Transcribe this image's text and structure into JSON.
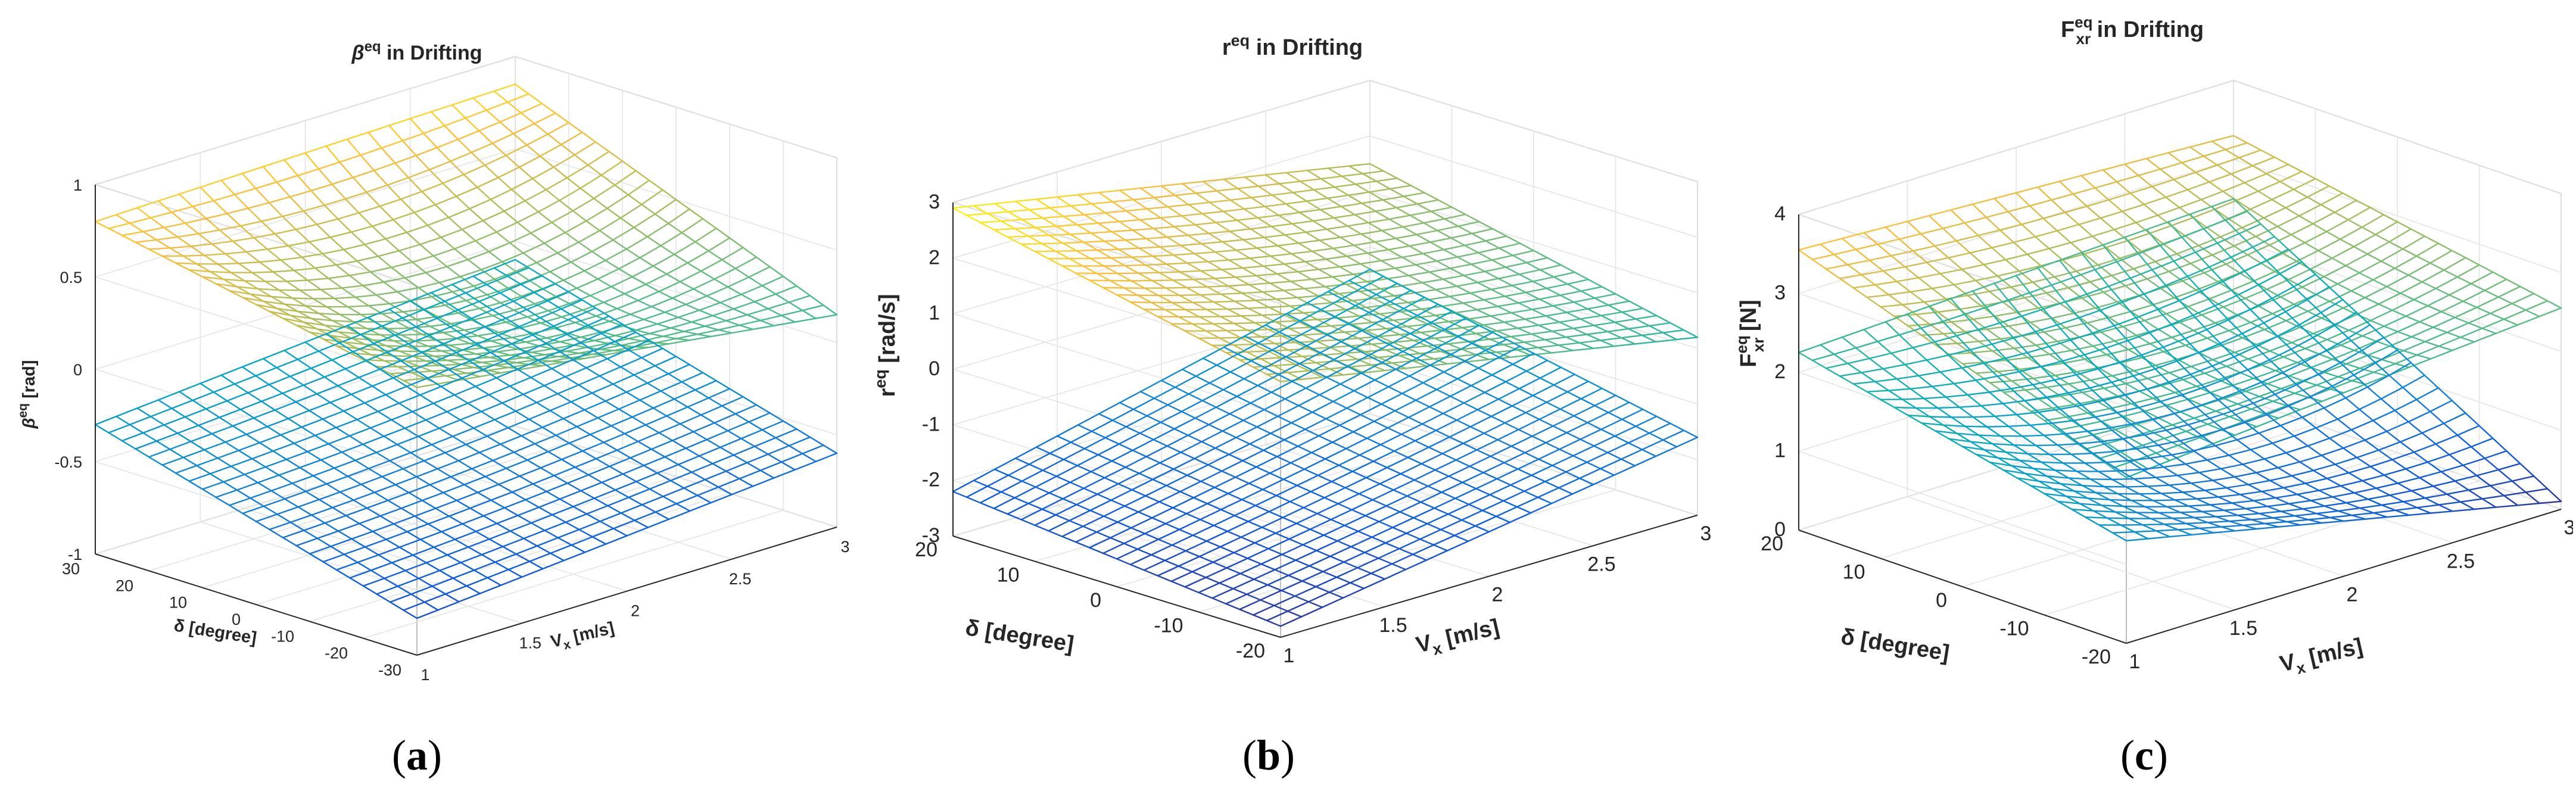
{
  "chart_data": [
    {
      "type": "surface",
      "panel_label": "a",
      "title_prefix": "β",
      "title_sup": "eq",
      "title_suffix": " in Drifting",
      "xlabel_main": "V",
      "xlabel_sub": "x",
      "xlabel_unit": " [m/s]",
      "ylabel": "δ [degree]",
      "zlabel_main": "β",
      "zlabel_sup": "eq",
      "zlabel_unit": " [rad]",
      "xlim": [
        1,
        3
      ],
      "ylim": [
        -30,
        30
      ],
      "zlim": [
        -1,
        1
      ],
      "xticks": [
        "1",
        "1.5",
        "2",
        "2.5",
        "3"
      ],
      "yticks": [
        "-30",
        "-20",
        "-10",
        "0",
        "10",
        "20",
        "30"
      ],
      "zticks": [
        "-1",
        "-0.5",
        "0",
        "0.5",
        "1"
      ],
      "surfaces": [
        {
          "name": "upper",
          "corners": {
            "x1_ymin": 0.45,
            "x1_ymax": 0.8,
            "x3_ymin": 0.15,
            "x3_ymax": 0.85
          },
          "center": 0.3
        },
        {
          "name": "lower",
          "corners": {
            "x1_ymin": -0.8,
            "x1_ymax": -0.3,
            "x3_ymin": -0.6,
            "x3_ymax": -0.1
          },
          "center": -0.48
        }
      ],
      "colormap": "parula"
    },
    {
      "type": "surface",
      "panel_label": "b",
      "title_prefix": "r",
      "title_sup": "eq",
      "title_suffix": " in Drifting",
      "xlabel_main": "V",
      "xlabel_sub": "x",
      "xlabel_unit": " [m/s]",
      "ylabel": "δ [degree]",
      "zlabel_main": "r",
      "zlabel_sup": "eq",
      "zlabel_unit": " [rad/s]",
      "xlim": [
        1,
        3
      ],
      "ylim": [
        -25,
        25
      ],
      "zlim": [
        -3,
        3
      ],
      "xticks": [
        "1",
        "1.5",
        "2",
        "2.5",
        "3"
      ],
      "yticks": [
        "-20",
        "-10",
        "0",
        "10",
        "20"
      ],
      "zticks": [
        "-3",
        "-2",
        "-1",
        "0",
        "1",
        "2",
        "3"
      ],
      "surfaces": [
        {
          "name": "upper",
          "corners": {
            "x1_ymin": 1.6,
            "x1_ymax": 2.9,
            "x3_ymin": 0.2,
            "x3_ymax": 1.5
          },
          "center": 1.3
        },
        {
          "name": "lower",
          "corners": {
            "x1_ymin": -2.8,
            "x1_ymax": -2.2,
            "x3_ymin": -1.6,
            "x3_ymax": -0.4
          },
          "center": -1.8
        }
      ],
      "colormap": "parula"
    },
    {
      "type": "surface",
      "panel_label": "c",
      "title_prefix": "F",
      "title_sup": "eq",
      "title_sub": "xr",
      "title_suffix": " in Drifting",
      "xlabel_main": "V",
      "xlabel_sub": "x",
      "xlabel_unit": " [m/s]",
      "ylabel": "δ [degree]",
      "zlabel_main": "F",
      "zlabel_sup": "eq",
      "zlabel_sub": "xr",
      "zlabel_unit": " [N]",
      "xlim": [
        1,
        3
      ],
      "ylim": [
        -25,
        25
      ],
      "zlim": [
        0,
        4
      ],
      "xticks": [
        "1",
        "1.5",
        "2",
        "2.5",
        "3"
      ],
      "yticks": [
        "-20",
        "-10",
        "0",
        "10",
        "20"
      ],
      "zticks": [
        "0",
        "1",
        "2",
        "3",
        "4"
      ],
      "surfaces": [
        {
          "name": "upper",
          "corners": {
            "x1_ymin": 2.1,
            "x1_ymax": 3.55,
            "x3_ymin": 2.55,
            "x3_ymax": 3.3
          },
          "center": 2.5
        },
        {
          "name": "lower",
          "corners": {
            "x1_ymin": 1.3,
            "x1_ymax": 2.25,
            "x3_ymin": 0.1,
            "x3_ymax": 2.5
          },
          "center": 1.0
        }
      ],
      "colormap": "parula"
    }
  ]
}
